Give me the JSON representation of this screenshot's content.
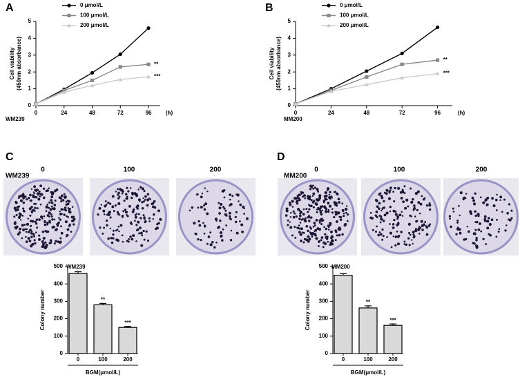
{
  "chart_data": [
    {
      "type": "line",
      "panel": "A",
      "cell_line": "WM239",
      "y_label": [
        "Cell viability",
        "(450nm absorbance)"
      ],
      "x_label": "(h)",
      "x": [
        0,
        24,
        48,
        72,
        96
      ],
      "xlim": [
        0,
        106
      ],
      "xticks": [
        0,
        24,
        48,
        72,
        96
      ],
      "ylim": [
        0,
        5
      ],
      "yticks": [
        0,
        1,
        2,
        3,
        4,
        5
      ],
      "series": [
        {
          "name": "0 μmol/L",
          "color": "#000000",
          "marker": "circle",
          "values": [
            0.1,
            0.97,
            1.95,
            3.05,
            4.6
          ]
        },
        {
          "name": "100 μmol/L",
          "color": "#888888",
          "marker": "square",
          "values": [
            0.1,
            0.9,
            1.5,
            2.3,
            2.45
          ],
          "annotation": "**"
        },
        {
          "name": "200 μmol/L",
          "color": "#cccccc",
          "marker": "triangle",
          "values": [
            0.1,
            0.8,
            1.2,
            1.55,
            1.72
          ],
          "annotation": "***"
        }
      ]
    },
    {
      "type": "line",
      "panel": "B",
      "cell_line": "MM200",
      "y_label": [
        "Cell viability",
        "(450nm absorbance)"
      ],
      "x_label": "(h)",
      "x": [
        0,
        24,
        48,
        72,
        96
      ],
      "xlim": [
        0,
        106
      ],
      "xticks": [
        0,
        24,
        48,
        72,
        96
      ],
      "ylim": [
        0,
        5
      ],
      "yticks": [
        0,
        1,
        2,
        3,
        4,
        5
      ],
      "series": [
        {
          "name": "0 μmol/L",
          "color": "#000000",
          "marker": "circle",
          "values": [
            0.1,
            1.0,
            2.05,
            3.1,
            4.65
          ]
        },
        {
          "name": "100 μmol/L",
          "color": "#888888",
          "marker": "square",
          "values": [
            0.1,
            0.9,
            1.7,
            2.45,
            2.7
          ],
          "annotation": "**"
        },
        {
          "name": "200 μmol/L",
          "color": "#cccccc",
          "marker": "triangle",
          "values": [
            0.1,
            0.85,
            1.25,
            1.65,
            1.9
          ],
          "annotation": "***"
        }
      ]
    },
    {
      "type": "bar",
      "panel": "C",
      "photo_title": "WM239",
      "title": "WM239",
      "y_label": "Colony number",
      "x_label": "BGM(μmol/L)",
      "categories": [
        "0",
        "100",
        "200"
      ],
      "values": [
        460,
        280,
        150
      ],
      "errors": [
        10,
        8,
        6
      ],
      "value_annotations": [
        null,
        "**",
        "***"
      ],
      "color": "#d9d9d9",
      "ylim": [
        0,
        500
      ],
      "yticks": [
        0,
        100,
        200,
        300,
        400,
        500
      ]
    },
    {
      "type": "bar",
      "panel": "D",
      "photo_title": "MM200",
      "title": "MM200",
      "y_label": "Colony number",
      "x_label": "BGM(μmol/L)",
      "categories": [
        "0",
        "100",
        "200"
      ],
      "values": [
        450,
        262,
        162
      ],
      "errors": [
        9,
        12,
        8
      ],
      "value_annotations": [
        null,
        "**",
        "***"
      ],
      "color": "#d9d9d9",
      "ylim": [
        0,
        500
      ],
      "yticks": [
        0,
        100,
        200,
        300,
        400,
        500
      ]
    }
  ]
}
